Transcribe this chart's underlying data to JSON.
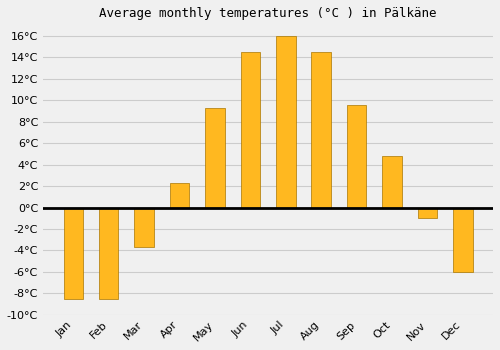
{
  "title": "Average monthly temperatures (°C ) in Pälkäne",
  "months": [
    "Jan",
    "Feb",
    "Mar",
    "Apr",
    "May",
    "Jun",
    "Jul",
    "Aug",
    "Sep",
    "Oct",
    "Nov",
    "Dec"
  ],
  "temperatures": [
    -8.5,
    -8.5,
    -3.7,
    2.3,
    9.3,
    14.5,
    16.0,
    14.5,
    9.6,
    4.8,
    -1.0,
    -6.0
  ],
  "bar_color_top": "#FFB820",
  "bar_color_bottom": "#FF9500",
  "bar_edge_color": "#AA7700",
  "ylim": [
    -10,
    17
  ],
  "yticks": [
    -10,
    -8,
    -6,
    -4,
    -2,
    0,
    2,
    4,
    6,
    8,
    10,
    12,
    14,
    16
  ],
  "background_color": "#f0f0f0",
  "plot_bg_color": "#f0f0f0",
  "grid_color": "#cccccc",
  "title_fontsize": 9,
  "tick_fontsize": 8,
  "zero_line_color": "#000000",
  "bar_width": 0.55
}
